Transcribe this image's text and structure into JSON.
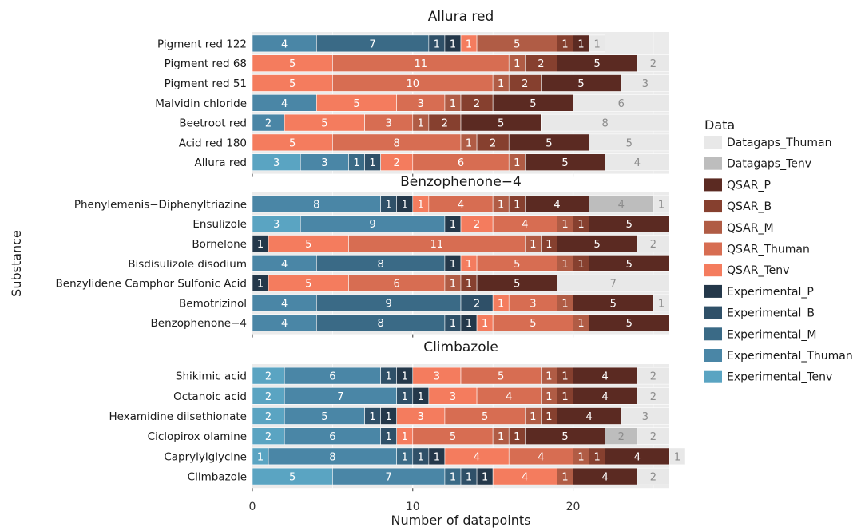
{
  "chart_data": {
    "type": "bar",
    "orientation": "horizontal",
    "stacked": true,
    "xlabel": "Number of datapoints",
    "ylabel": "Substance",
    "xlim": [
      0,
      26
    ],
    "xticks": [
      0,
      10,
      20
    ],
    "grid": true,
    "legend": {
      "title": "Data",
      "position": "right",
      "entries": [
        {
          "name": "Datagaps_Thuman",
          "color": "#e8e8e8"
        },
        {
          "name": "Datagaps_Tenv",
          "color": "#bdbdbd"
        },
        {
          "name": "QSAR_P",
          "color": "#5b2a22"
        },
        {
          "name": "QSAR_B",
          "color": "#86402f"
        },
        {
          "name": "QSAR_M",
          "color": "#b05c45"
        },
        {
          "name": "QSAR_Thuman",
          "color": "#d76d52"
        },
        {
          "name": "QSAR_Tenv",
          "color": "#f47c5e"
        },
        {
          "name": "Experimental_P",
          "color": "#24384a"
        },
        {
          "name": "Experimental_B",
          "color": "#2f5068"
        },
        {
          "name": "Experimental_M",
          "color": "#3a6a86"
        },
        {
          "name": "Experimental_Thuman",
          "color": "#4a86a6"
        },
        {
          "name": "Experimental_Tenv",
          "color": "#5aa4c2"
        }
      ]
    },
    "stack_order": [
      "Experimental_Tenv",
      "Experimental_Thuman",
      "Experimental_M",
      "Experimental_B",
      "Experimental_P",
      "QSAR_Tenv",
      "QSAR_Thuman",
      "QSAR_M",
      "QSAR_B",
      "QSAR_P",
      "Datagaps_Tenv",
      "Datagaps_Thuman"
    ],
    "panels": [
      {
        "title": "Allura red",
        "categories": [
          "Pigment red 122",
          "Pigment red 68",
          "Pigment red 51",
          "Malvidin chloride",
          "Beetroot red",
          "Acid red 180",
          "Allura red"
        ],
        "rows": [
          [
            0,
            4,
            7,
            1,
            1,
            1,
            0,
            5,
            1,
            1,
            0,
            1
          ],
          [
            0,
            0,
            0,
            0,
            0,
            5,
            11,
            1,
            2,
            5,
            0,
            2
          ],
          [
            0,
            0,
            0,
            0,
            0,
            5,
            10,
            1,
            2,
            5,
            0,
            3
          ],
          [
            0,
            4,
            0,
            0,
            0,
            5,
            3,
            1,
            2,
            5,
            0,
            6
          ],
          [
            0,
            2,
            0,
            0,
            0,
            5,
            3,
            1,
            2,
            5,
            0,
            8
          ],
          [
            0,
            0,
            0,
            0,
            0,
            5,
            8,
            1,
            2,
            5,
            0,
            5
          ],
          [
            3,
            3,
            1,
            1,
            0,
            2,
            6,
            1,
            0,
            5,
            0,
            4
          ]
        ],
        "last_segment_overrides": [
          [
            9,
            4
          ]
        ]
      },
      {
        "title": "Benzophenone−4",
        "categories": [
          "Phenylemenis−Diphenyltriazine",
          "Ensulizole",
          "Bornelone",
          "Bisdisulizole disodium",
          "Benzylidene Camphor Sulfonic Acid",
          "Bemotrizinol",
          "Benzophenone−4"
        ],
        "rows": [
          [
            0,
            8,
            0,
            1,
            1,
            1,
            4,
            1,
            1,
            4,
            4,
            1
          ],
          [
            3,
            9,
            0,
            0,
            1,
            2,
            4,
            1,
            1,
            5,
            0,
            0
          ],
          [
            0,
            0,
            0,
            0,
            1,
            5,
            11,
            1,
            1,
            5,
            0,
            2
          ],
          [
            0,
            4,
            8,
            0,
            1,
            1,
            5,
            1,
            1,
            5,
            0,
            0
          ],
          [
            0,
            0,
            0,
            0,
            1,
            5,
            6,
            1,
            1,
            5,
            0,
            7
          ],
          [
            0,
            4,
            9,
            2,
            0,
            1,
            3,
            1,
            0,
            5,
            0,
            1
          ],
          [
            0,
            4,
            8,
            1,
            1,
            1,
            5,
            1,
            0,
            5,
            0,
            0
          ]
        ]
      },
      {
        "title": "Climbazole",
        "categories": [
          "Shikimic acid",
          "Octanoic acid",
          "Hexamidine diisethionate",
          "Ciclopirox olamine",
          "Caprylylglycine",
          "Climbazole"
        ],
        "rows": [
          [
            2,
            6,
            0,
            1,
            1,
            3,
            5,
            1,
            1,
            4,
            0,
            2
          ],
          [
            2,
            7,
            0,
            1,
            1,
            3,
            4,
            1,
            1,
            4,
            0,
            2
          ],
          [
            2,
            5,
            0,
            1,
            1,
            3,
            5,
            1,
            1,
            4,
            0,
            3
          ],
          [
            2,
            6,
            0,
            1,
            0,
            1,
            5,
            1,
            1,
            5,
            2,
            2
          ],
          [
            1,
            8,
            1,
            1,
            1,
            4,
            4,
            1,
            1,
            4,
            0,
            1
          ],
          [
            5,
            7,
            1,
            1,
            1,
            4,
            0,
            1,
            0,
            4,
            0,
            2
          ]
        ]
      }
    ]
  }
}
